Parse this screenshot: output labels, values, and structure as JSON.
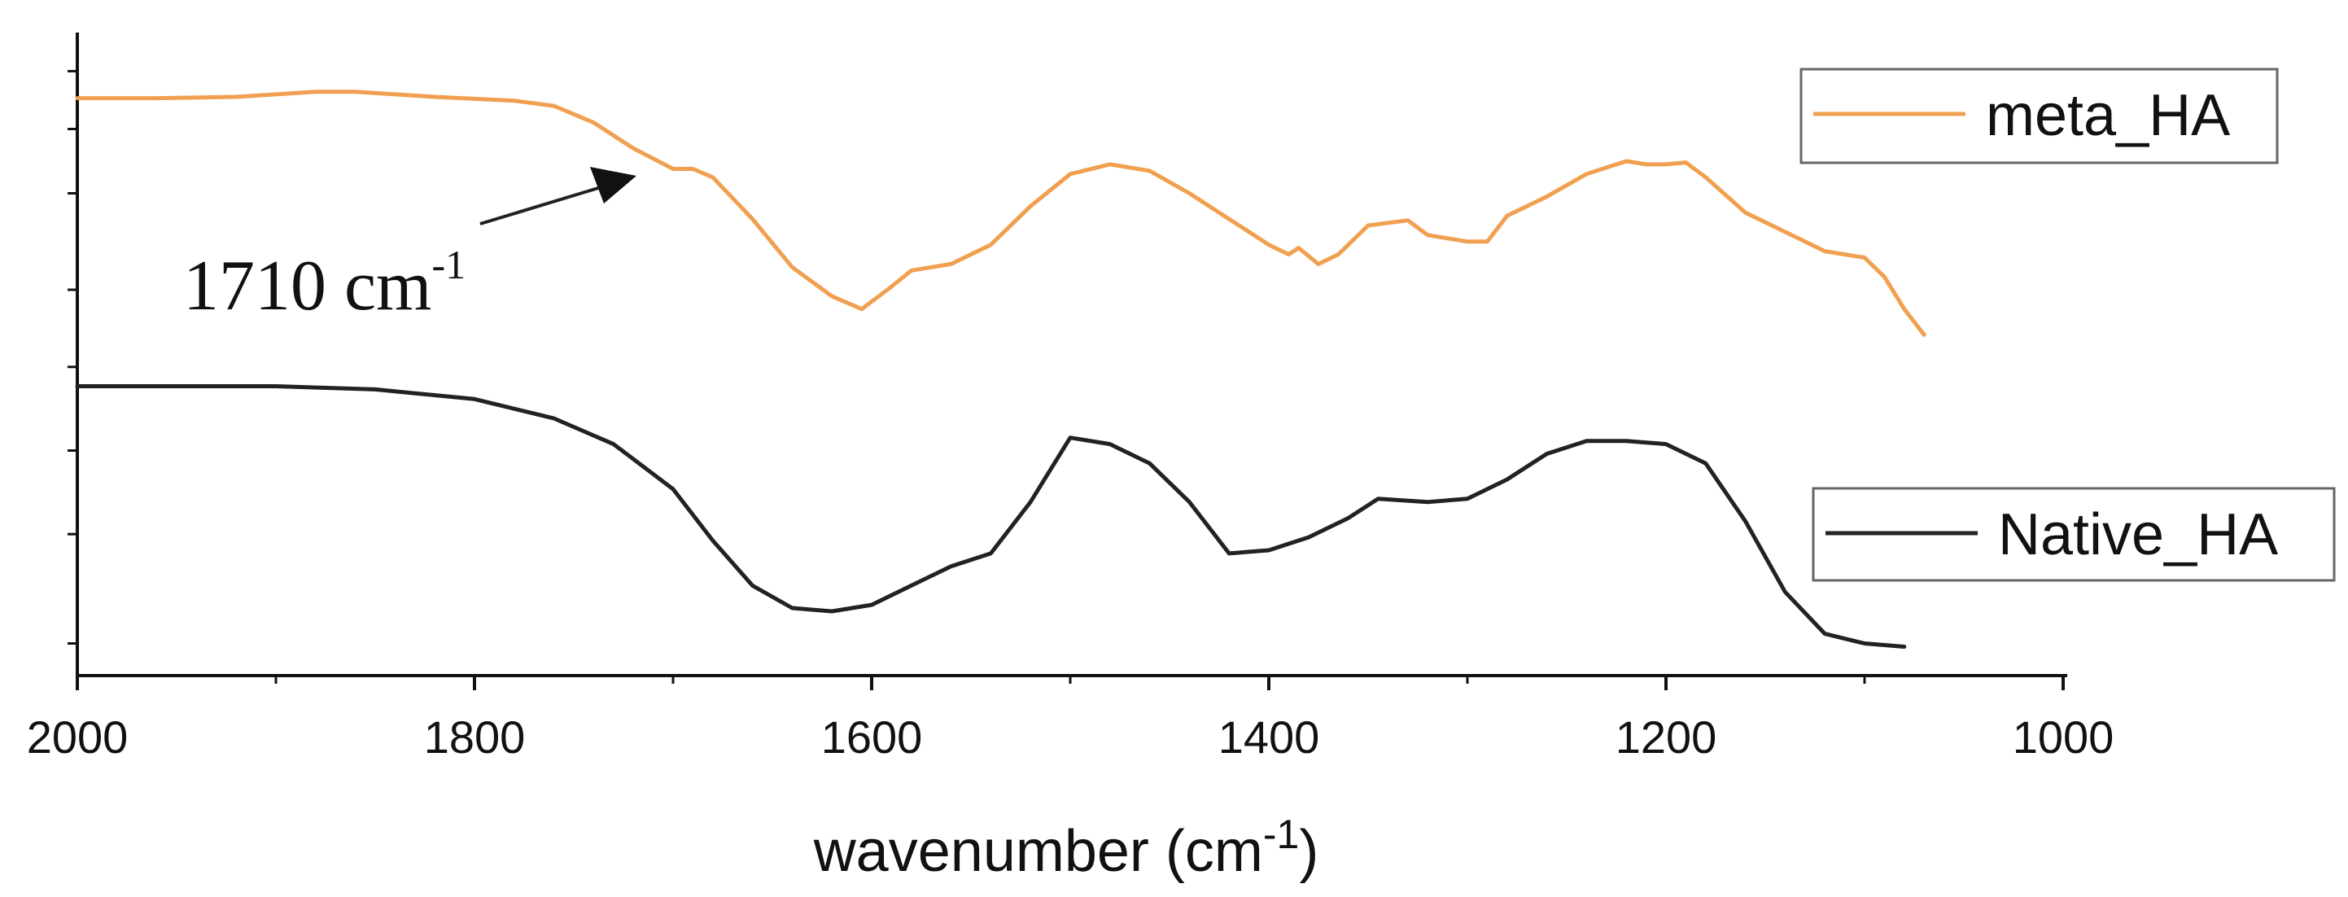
{
  "chart_data": {
    "type": "line",
    "xlabel": "wavenumber (cm",
    "xlabel_sup": "-1",
    "xlabel_end": ")",
    "xlim": [
      2000,
      1000
    ],
    "xticks": [
      2000,
      1800,
      1600,
      1400,
      1200,
      1000
    ],
    "x_minor_step": 100,
    "ylim": [
      0,
      100
    ],
    "y_minor_ticks": [
      5,
      22,
      35,
      48,
      60,
      75,
      85,
      94
    ],
    "yticklabels_shown": false,
    "grid": false,
    "annotation": {
      "text": "1710 cm",
      "sup": "-1",
      "x": 1710,
      "y": 77,
      "arrow": true
    },
    "series": [
      {
        "name": "meta_HA",
        "color": "#F0A050",
        "points": [
          [
            2000,
            89.8
          ],
          [
            1960,
            89.8
          ],
          [
            1920,
            90.0
          ],
          [
            1880,
            90.8
          ],
          [
            1860,
            90.8
          ],
          [
            1820,
            90.0
          ],
          [
            1780,
            89.4
          ],
          [
            1760,
            88.6
          ],
          [
            1740,
            86.0
          ],
          [
            1720,
            82.0
          ],
          [
            1700,
            78.8
          ],
          [
            1690,
            78.8
          ],
          [
            1680,
            77.5
          ],
          [
            1660,
            71.0
          ],
          [
            1640,
            63.5
          ],
          [
            1620,
            59.0
          ],
          [
            1605,
            57.0
          ],
          [
            1590,
            60.5
          ],
          [
            1580,
            63.0
          ],
          [
            1560,
            64.0
          ],
          [
            1540,
            67.0
          ],
          [
            1520,
            73.0
          ],
          [
            1500,
            78.0
          ],
          [
            1480,
            79.5
          ],
          [
            1460,
            78.5
          ],
          [
            1440,
            75.0
          ],
          [
            1420,
            71.0
          ],
          [
            1400,
            67.0
          ],
          [
            1390,
            65.5
          ],
          [
            1385,
            66.5
          ],
          [
            1375,
            64.0
          ],
          [
            1365,
            65.5
          ],
          [
            1350,
            70.0
          ],
          [
            1330,
            70.8
          ],
          [
            1320,
            68.5
          ],
          [
            1300,
            67.5
          ],
          [
            1290,
            67.5
          ],
          [
            1280,
            71.5
          ],
          [
            1260,
            74.5
          ],
          [
            1240,
            78.0
          ],
          [
            1220,
            80.0
          ],
          [
            1210,
            79.5
          ],
          [
            1200,
            79.5
          ],
          [
            1190,
            79.8
          ],
          [
            1180,
            77.5
          ],
          [
            1160,
            72.0
          ],
          [
            1140,
            69.0
          ],
          [
            1120,
            66.0
          ],
          [
            1100,
            65.0
          ],
          [
            1090,
            62.0
          ],
          [
            1080,
            57.0
          ],
          [
            1070,
            53.0
          ]
        ]
      },
      {
        "name": "Native_HA",
        "color": "#222222",
        "points": [
          [
            2000,
            45.0
          ],
          [
            1900,
            45.0
          ],
          [
            1850,
            44.5
          ],
          [
            1800,
            43.0
          ],
          [
            1760,
            40.0
          ],
          [
            1730,
            36.0
          ],
          [
            1700,
            29.0
          ],
          [
            1680,
            21.0
          ],
          [
            1660,
            14.0
          ],
          [
            1640,
            10.5
          ],
          [
            1620,
            10.0
          ],
          [
            1600,
            11.0
          ],
          [
            1580,
            14.0
          ],
          [
            1560,
            17.0
          ],
          [
            1540,
            19.0
          ],
          [
            1520,
            27.0
          ],
          [
            1500,
            37.0
          ],
          [
            1480,
            36.0
          ],
          [
            1460,
            33.0
          ],
          [
            1440,
            27.0
          ],
          [
            1420,
            19.0
          ],
          [
            1400,
            19.5
          ],
          [
            1380,
            21.5
          ],
          [
            1360,
            24.5
          ],
          [
            1345,
            27.5
          ],
          [
            1320,
            27.0
          ],
          [
            1300,
            27.5
          ],
          [
            1280,
            30.5
          ],
          [
            1260,
            34.5
          ],
          [
            1240,
            36.5
          ],
          [
            1220,
            36.5
          ],
          [
            1200,
            36.0
          ],
          [
            1180,
            33.0
          ],
          [
            1160,
            24.0
          ],
          [
            1140,
            13.0
          ],
          [
            1120,
            6.5
          ],
          [
            1100,
            5.0
          ],
          [
            1080,
            4.5
          ]
        ]
      }
    ]
  }
}
